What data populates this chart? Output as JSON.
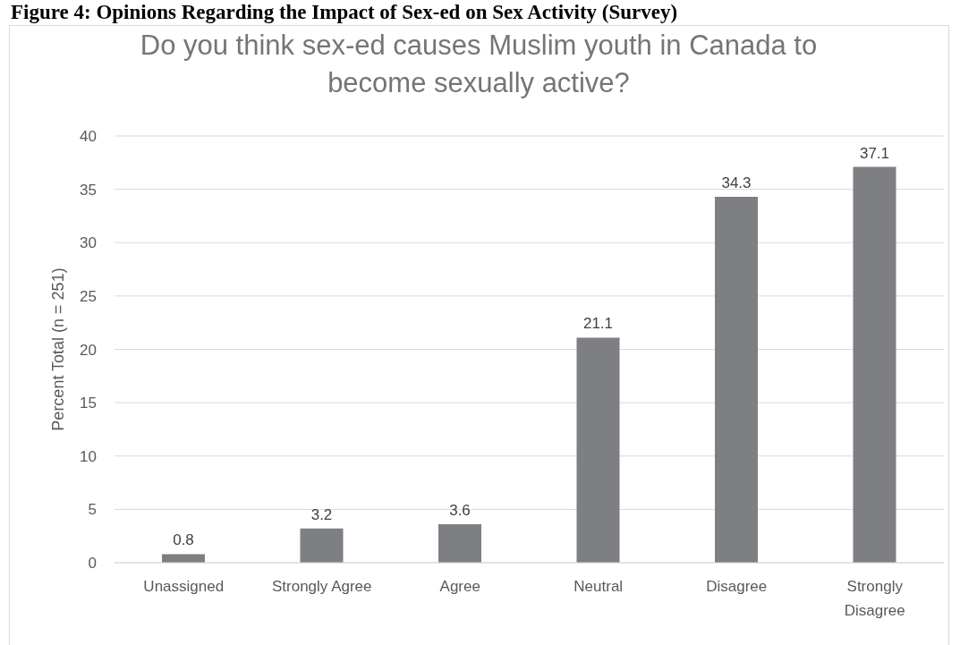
{
  "chart_data": {
    "type": "bar",
    "title": "Do you think sex-ed causes Muslim youth in Canada to become sexually active?",
    "annotations": [
      "Figure 4: Opinions Regarding the Impact of Sex-ed on Sex Activity (Survey)"
    ],
    "ylabel": "Percent Total (n = 251)",
    "categories": [
      "Unassigned",
      "Strongly Agree",
      "Agree",
      "Neutral",
      "Disagree",
      "Strongly Disagree"
    ],
    "values": [
      0.8,
      3.2,
      3.6,
      21.1,
      34.3,
      37.1
    ],
    "color": "#7e7f83",
    "ylim": [
      0,
      40
    ],
    "yticks": [
      0,
      5,
      10,
      15,
      20,
      25,
      30,
      35,
      40
    ],
    "grid": "y",
    "data_labels": true
  }
}
